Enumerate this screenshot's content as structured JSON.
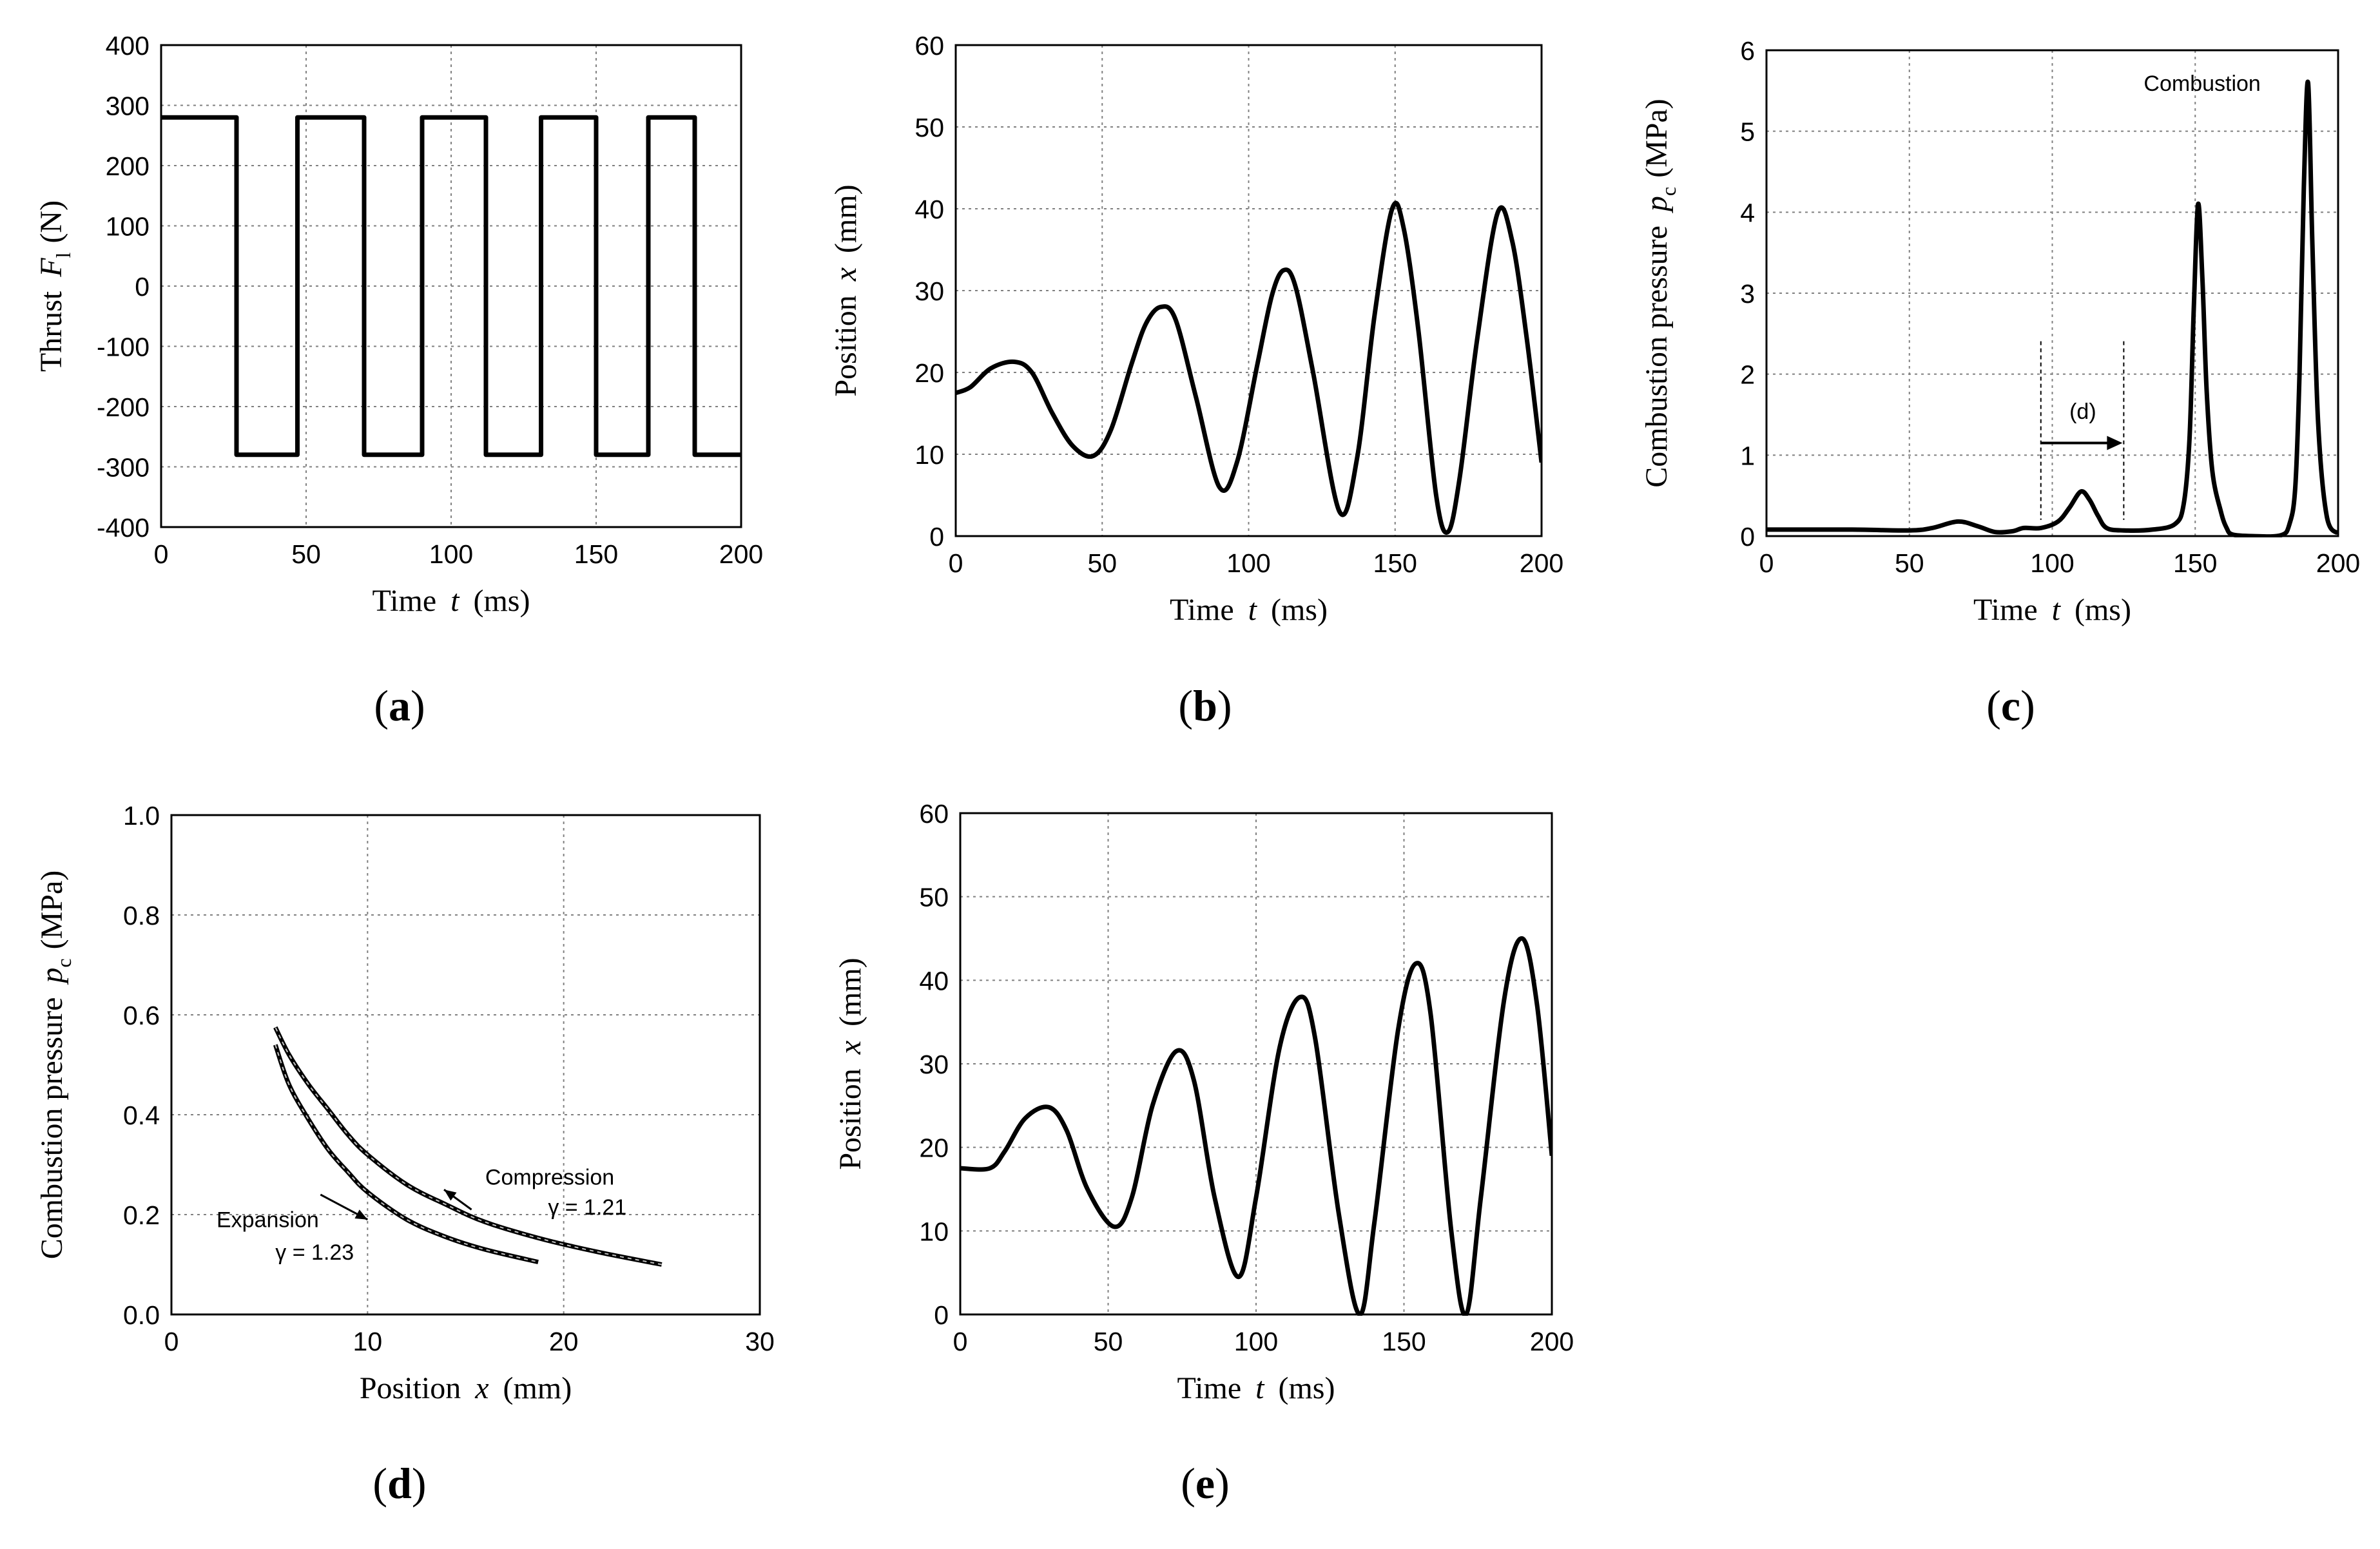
{
  "chart_data": [
    {
      "id": "a",
      "type": "line",
      "panel_label": "a",
      "ylabel": "Thrust",
      "ylabel_symbol": "F",
      "ylabel_subscript": "l",
      "ylabel_unit": "(N)",
      "xlabel": "Time",
      "xlabel_symbol": "t",
      "xlabel_unit": "(ms)",
      "xlim": [
        0,
        200
      ],
      "ylim": [
        -400,
        400
      ],
      "xticks": [
        0,
        50,
        100,
        150,
        200
      ],
      "yticks": [
        -400,
        -300,
        -200,
        -100,
        0,
        100,
        200,
        300,
        400
      ],
      "grid": true,
      "series": [
        {
          "name": "Thrust",
          "x": [
            0,
            26,
            26,
            47,
            47,
            70,
            70,
            90,
            90,
            112,
            112,
            131,
            131,
            150,
            150,
            168,
            168,
            184,
            184,
            200
          ],
          "y": [
            280,
            280,
            -280,
            -280,
            280,
            280,
            -280,
            -280,
            280,
            280,
            -280,
            -280,
            280,
            280,
            -280,
            -280,
            280,
            280,
            -280,
            -280
          ]
        }
      ],
      "annotations": []
    },
    {
      "id": "b",
      "type": "line",
      "panel_label": "b",
      "ylabel": "Position",
      "ylabel_symbol": "x",
      "ylabel_unit": "(mm)",
      "xlabel": "Time",
      "xlabel_symbol": "t",
      "xlabel_unit": "(ms)",
      "xlim": [
        0,
        200
      ],
      "ylim": [
        0,
        60
      ],
      "xticks": [
        0,
        50,
        100,
        150,
        200
      ],
      "yticks": [
        0,
        10,
        20,
        30,
        40,
        50,
        60
      ],
      "grid": true,
      "series": [
        {
          "name": "Position",
          "x": [
            0,
            5,
            12,
            20,
            26,
            33,
            40,
            47,
            53,
            60,
            65,
            70,
            75,
            82,
            90,
            96,
            103,
            108,
            112,
            116,
            122,
            131,
            137,
            143,
            149,
            153,
            158,
            164,
            168,
            172,
            178,
            185,
            190,
            195,
            200
          ],
          "y": [
            17.5,
            18.2,
            20.5,
            21.3,
            20,
            15,
            11,
            9.8,
            13,
            21,
            26,
            28,
            26.5,
            17,
            6,
            9,
            21,
            29.5,
            32.5,
            30.5,
            20,
            3,
            9.5,
            27,
            40,
            37.5,
            25,
            5,
            0.5,
            7,
            24,
            39.5,
            36,
            24,
            9
          ]
        }
      ],
      "annotations": []
    },
    {
      "id": "c",
      "type": "line",
      "panel_label": "c",
      "ylabel": "Combustion pressure",
      "ylabel_symbol": "p",
      "ylabel_subscript": "c",
      "ylabel_unit": "(MPa)",
      "xlabel": "Time",
      "xlabel_symbol": "t",
      "xlabel_unit": "(ms)",
      "xlim": [
        0,
        200
      ],
      "ylim": [
        0,
        6
      ],
      "xticks": [
        0,
        50,
        100,
        150,
        200
      ],
      "yticks": [
        0,
        1,
        2,
        3,
        4,
        5,
        6
      ],
      "grid": true,
      "series": [
        {
          "name": "Combustion pressure",
          "x": [
            0,
            30,
            50,
            58,
            67,
            74,
            80,
            86,
            90,
            96,
            102,
            106,
            110,
            113,
            116,
            119,
            125,
            135,
            143,
            146,
            148,
            149.5,
            151,
            152.5,
            154,
            156,
            159,
            161,
            163,
            170,
            180,
            183,
            185,
            186.5,
            188,
            189.5,
            191,
            193,
            196,
            200
          ],
          "y": [
            0.08,
            0.08,
            0.07,
            0.1,
            0.18,
            0.12,
            0.05,
            0.06,
            0.1,
            0.1,
            0.18,
            0.35,
            0.55,
            0.45,
            0.25,
            0.1,
            0.07,
            0.08,
            0.15,
            0.4,
            1.2,
            2.8,
            4.1,
            3.2,
            1.8,
            0.8,
            0.3,
            0.1,
            0.02,
            0.0,
            0.01,
            0.15,
            0.6,
            2.0,
            4.3,
            5.6,
            3.6,
            1.4,
            0.25,
            0.03
          ]
        }
      ],
      "annotations": [
        {
          "text": "Combustion",
          "x": 132,
          "y": 5.5
        },
        {
          "text": "(d)",
          "x": 106,
          "y": 1.45
        },
        {
          "type": "range",
          "x_start": 96,
          "x_end": 125
        }
      ]
    },
    {
      "id": "d",
      "type": "line",
      "panel_label": "d",
      "ylabel": "Combustion pressure",
      "ylabel_symbol": "p",
      "ylabel_subscript": "c",
      "ylabel_unit": "(MPa)",
      "xlabel": "Position",
      "xlabel_symbol": "x",
      "xlabel_unit": "(mm)",
      "xlim": [
        0,
        30
      ],
      "ylim": [
        0,
        1.0
      ],
      "xticks": [
        0,
        10,
        20,
        30
      ],
      "ytick_labels": [
        "0.0",
        "0.2",
        "0.4",
        "0.6",
        "0.8",
        "1.0"
      ],
      "yticks": [
        0,
        0.2,
        0.4,
        0.6,
        0.8,
        1.0
      ],
      "grid": true,
      "series": [
        {
          "name": "Compression",
          "x": [
            25,
            22,
            19,
            16,
            14,
            12,
            10,
            9,
            8,
            7,
            6,
            5.3
          ],
          "y": [
            0.1,
            0.123,
            0.15,
            0.185,
            0.22,
            0.26,
            0.32,
            0.36,
            0.41,
            0.46,
            0.52,
            0.575
          ]
        },
        {
          "name": "Expansion",
          "x": [
            5.3,
            6,
            7,
            8,
            9,
            10,
            12,
            14,
            16,
            18.7
          ],
          "y": [
            0.54,
            0.46,
            0.39,
            0.33,
            0.285,
            0.245,
            0.19,
            0.155,
            0.13,
            0.105
          ]
        }
      ],
      "annotations": [
        {
          "text": "Compression",
          "x": 16,
          "y": 0.26
        },
        {
          "text": "γ = 1.21",
          "x": 19.2,
          "y": 0.2
        },
        {
          "text": "Expansion",
          "x": 2.3,
          "y": 0.175
        },
        {
          "text": "γ = 1.23",
          "x": 5.3,
          "y": 0.11
        }
      ]
    },
    {
      "id": "e",
      "type": "line",
      "panel_label": "e",
      "ylabel": "Position",
      "ylabel_symbol": "x",
      "ylabel_unit": "(mm)",
      "xlabel": "Time",
      "xlabel_symbol": "t",
      "xlabel_unit": "(ms)",
      "xlim": [
        0,
        200
      ],
      "ylim": [
        0,
        60
      ],
      "xticks": [
        0,
        50,
        100,
        150,
        200
      ],
      "yticks": [
        0,
        10,
        20,
        30,
        40,
        50,
        60
      ],
      "grid": true,
      "series": [
        {
          "name": "Position",
          "x": [
            0,
            10,
            15,
            22,
            30,
            36,
            43,
            52,
            58,
            65,
            73,
            79,
            86,
            94,
            100,
            108,
            115,
            120,
            128,
            135,
            140,
            148,
            154,
            159,
            166,
            171,
            176,
            184,
            190,
            195,
            200
          ],
          "y": [
            17.5,
            17.5,
            19.5,
            23.5,
            24.8,
            22,
            15,
            10.5,
            14,
            25,
            31.5,
            28,
            14,
            4.5,
            14,
            32,
            38,
            33,
            12,
            0,
            11,
            34,
            42,
            36,
            10,
            0,
            14,
            38,
            45,
            37,
            19
          ]
        }
      ],
      "annotations": []
    }
  ]
}
